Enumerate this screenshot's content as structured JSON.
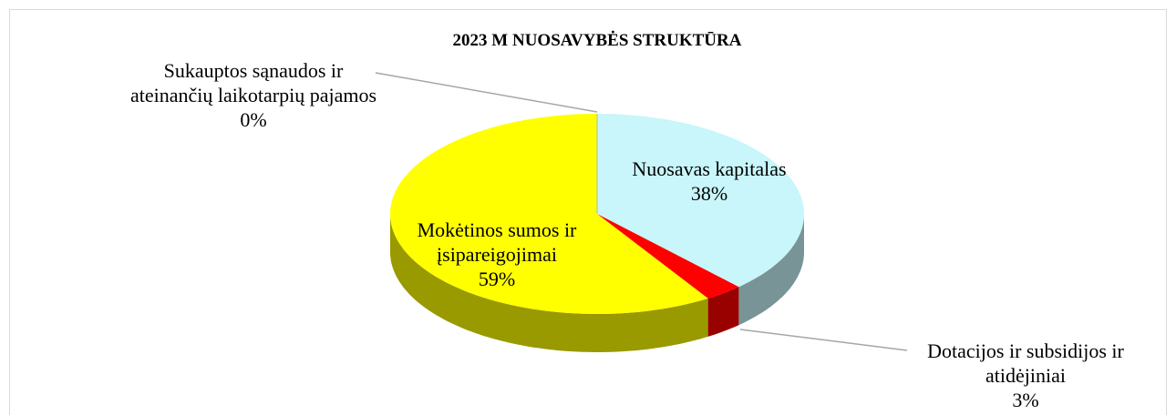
{
  "chart_data": {
    "type": "pie",
    "title": "2023 M  NUOSAVYBĖS STRUKTŪRA",
    "categories": [
      "Nuosavas kapitalas",
      "Dotacijos ir subsidijos ir atidėjiniai",
      "Mokėtinos sumos ir įsipareigojimai",
      "Sukauptos sąnaudos ir ateinančių laikotarpių pajamos"
    ],
    "values": [
      38,
      3,
      59,
      0
    ],
    "value_labels": [
      "38%",
      "3%",
      "59%",
      "0%"
    ],
    "colors": [
      "#c8f6fa",
      "#ff0000",
      "#ffff00",
      "#9fc0c4"
    ]
  }
}
